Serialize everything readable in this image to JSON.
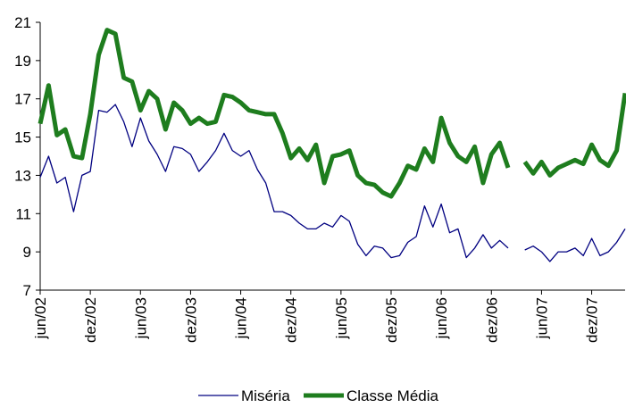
{
  "chart_data": {
    "type": "line",
    "categories": [
      "jun/02",
      null,
      null,
      null,
      null,
      null,
      "dez/02",
      null,
      null,
      null,
      null,
      null,
      "jun/03",
      null,
      null,
      null,
      null,
      null,
      "dez/03",
      null,
      null,
      null,
      null,
      null,
      "jun/04",
      null,
      null,
      null,
      null,
      null,
      "dez/04",
      null,
      null,
      null,
      null,
      null,
      "jun/05",
      null,
      null,
      null,
      null,
      null,
      "dez/05",
      null,
      null,
      null,
      null,
      null,
      "jun/06",
      null,
      null,
      null,
      null,
      null,
      "dez/06",
      null,
      null,
      null,
      null,
      null,
      "jun/07",
      null,
      null,
      null,
      null,
      null,
      "dez/07",
      null,
      null,
      null,
      null
    ],
    "series": [
      {
        "name": "Miséria",
        "color": "#000080",
        "width": 1.3,
        "values": [
          12.9,
          14.0,
          12.6,
          12.9,
          11.1,
          13.0,
          13.2,
          16.4,
          16.3,
          16.7,
          15.8,
          14.5,
          16.0,
          14.8,
          14.1,
          13.2,
          14.5,
          14.4,
          14.1,
          13.2,
          13.7,
          14.3,
          15.2,
          14.3,
          14.0,
          14.3,
          13.3,
          12.6,
          11.1,
          11.1,
          10.9,
          10.5,
          10.2,
          10.2,
          10.5,
          10.3,
          10.9,
          10.6,
          9.4,
          8.8,
          9.3,
          9.2,
          8.7,
          8.8,
          9.5,
          9.8,
          11.4,
          10.3,
          11.5,
          10.0,
          10.2,
          8.7,
          9.2,
          9.9,
          9.2,
          9.6,
          9.2,
          null,
          9.1,
          9.3,
          9.0,
          8.5,
          9.0,
          9.0,
          9.2,
          8.8,
          9.7,
          8.8,
          9.0,
          9.5,
          10.2
        ]
      },
      {
        "name": "Classe Média",
        "color": "#1e7d1e",
        "width": 5,
        "values": [
          15.7,
          17.7,
          15.1,
          15.4,
          14.0,
          13.9,
          16.2,
          19.3,
          20.6,
          20.4,
          18.1,
          17.9,
          16.4,
          17.4,
          17.0,
          15.4,
          16.8,
          16.4,
          15.7,
          16.0,
          15.7,
          15.8,
          17.2,
          17.1,
          16.8,
          16.4,
          16.3,
          16.2,
          16.2,
          15.2,
          13.9,
          14.4,
          13.8,
          14.6,
          12.6,
          14.0,
          14.1,
          14.3,
          13.0,
          12.6,
          12.5,
          12.1,
          11.9,
          12.6,
          13.5,
          13.3,
          14.4,
          13.7,
          16.0,
          14.7,
          14.0,
          13.7,
          14.5,
          12.6,
          14.1,
          14.7,
          13.4,
          null,
          13.7,
          13.1,
          13.7,
          13.0,
          13.4,
          13.6,
          13.8,
          13.6,
          14.6,
          13.8,
          13.5,
          14.3,
          17.3
        ]
      }
    ],
    "xlim": [
      0,
      70
    ],
    "ylim": [
      7,
      21
    ],
    "yticks": [
      7,
      9,
      11,
      13,
      15,
      17,
      19,
      21
    ],
    "legend": "bottom"
  }
}
